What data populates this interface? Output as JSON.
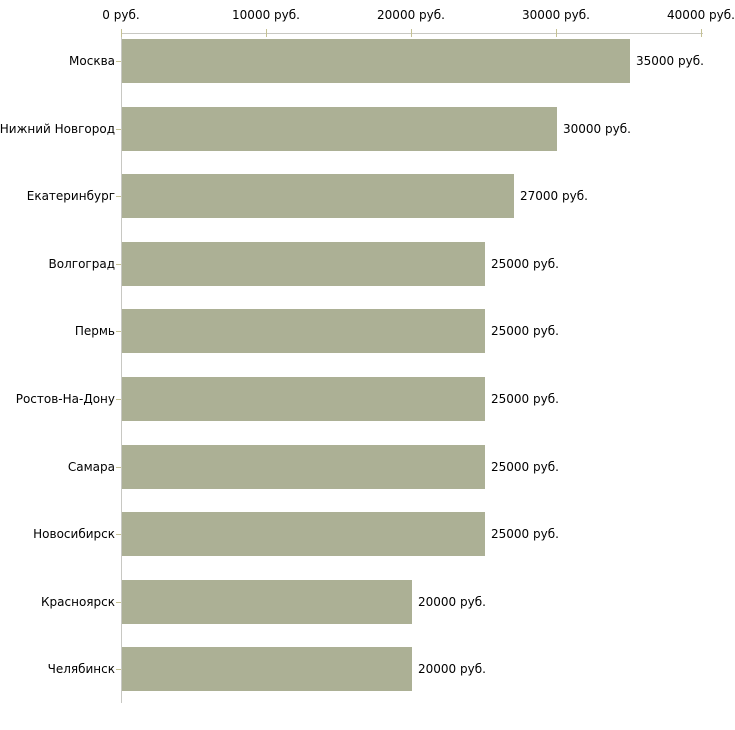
{
  "chart_data": {
    "type": "bar",
    "orientation": "horizontal",
    "title": "",
    "xlabel": "",
    "ylabel": "",
    "categories": [
      "Москва",
      "Нижний Новгород",
      "Екатеринбург",
      "Волгоград",
      "Пермь",
      "Ростов-На-Дону",
      "Самара",
      "Новосибирск",
      "Красноярск",
      "Челябинск"
    ],
    "values": [
      35000,
      30000,
      27000,
      25000,
      25000,
      25000,
      25000,
      25000,
      20000,
      20000
    ],
    "value_labels": [
      "35000 руб.",
      "30000 руб.",
      "27000 руб.",
      "25000 руб.",
      "25000 руб.",
      "25000 руб.",
      "25000 руб.",
      "25000 руб.",
      "20000 руб.",
      "20000 руб."
    ],
    "x_axis": {
      "position": "top",
      "range": [
        0,
        40000
      ],
      "ticks": [
        0,
        10000,
        20000,
        30000,
        40000
      ],
      "tick_labels": [
        "0 руб.",
        "10000 руб.",
        "20000 руб.",
        "30000 руб.",
        "40000 руб."
      ]
    },
    "grid": "off",
    "legend": "none",
    "colors": {
      "bar": "#acb095",
      "axis_line": "#c8c8c3",
      "tick_mark": "#c5c193",
      "text": "#000000",
      "background": "#ffffff"
    }
  }
}
